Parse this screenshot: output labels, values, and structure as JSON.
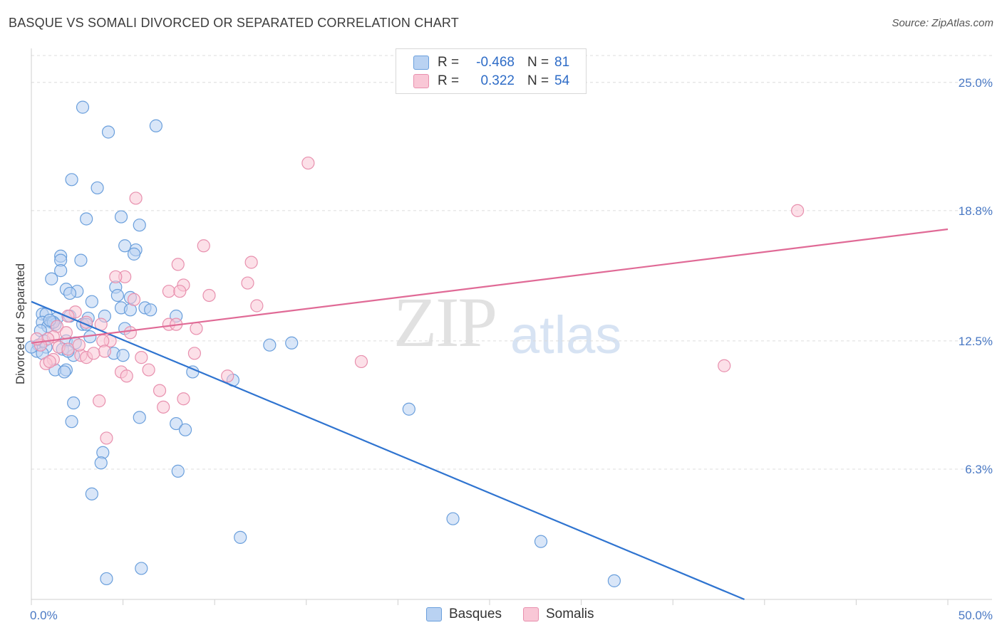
{
  "title": "BASQUE VS SOMALI DIVORCED OR SEPARATED CORRELATION CHART",
  "source": "Source: ZipAtlas.com",
  "watermark": {
    "zip": "ZIP",
    "atlas": "atlas"
  },
  "legend": {
    "r_label": "R =",
    "n_label": "N =",
    "basques": {
      "r": "-0.468",
      "n": "81"
    },
    "somalis": {
      "r": "0.322",
      "n": "54"
    }
  },
  "bottom_legend": {
    "basques": "Basques",
    "somalis": "Somalis"
  },
  "colors": {
    "basques_fill": "#b9d2f2",
    "basques_stroke": "#6a9fdc",
    "basques_line": "#2f74d0",
    "somalis_fill": "#f9c7d6",
    "somalis_stroke": "#e890ae",
    "somalis_line": "#e06a96",
    "grid": "#dcdcdc",
    "axis_label": "#4a79c4"
  },
  "chart_data": {
    "type": "scatter",
    "title": "BASQUE VS SOMALI DIVORCED OR SEPARATED CORRELATION CHART",
    "xlabel": "",
    "ylabel": "Divorced or Separated",
    "xlim": [
      0,
      50
    ],
    "ylim": [
      0,
      26.3
    ],
    "x_tick_labels": [
      "0.0%",
      "50.0%"
    ],
    "y_ticks": [
      6.3,
      12.5,
      18.8,
      25.0
    ],
    "y_tick_labels": [
      "6.3%",
      "12.5%",
      "18.8%",
      "25.0%"
    ],
    "grid": true,
    "series": [
      {
        "name": "Basques",
        "trend": {
          "x": [
            0,
            38.9
          ],
          "y": [
            14.4,
            0
          ]
        },
        "points": [
          [
            2.8,
            23.8
          ],
          [
            4.2,
            22.6
          ],
          [
            6.8,
            22.9
          ],
          [
            2.2,
            20.3
          ],
          [
            3.6,
            19.9
          ],
          [
            3.0,
            18.4
          ],
          [
            4.9,
            18.5
          ],
          [
            5.9,
            18.1
          ],
          [
            5.1,
            17.1
          ],
          [
            5.7,
            16.9
          ],
          [
            5.6,
            16.7
          ],
          [
            1.6,
            16.6
          ],
          [
            2.7,
            16.4
          ],
          [
            1.6,
            16.4
          ],
          [
            1.6,
            15.9
          ],
          [
            1.1,
            15.5
          ],
          [
            4.6,
            15.1
          ],
          [
            1.9,
            15.0
          ],
          [
            2.5,
            14.9
          ],
          [
            2.1,
            14.8
          ],
          [
            4.7,
            14.7
          ],
          [
            5.4,
            14.6
          ],
          [
            3.3,
            14.4
          ],
          [
            4.9,
            14.1
          ],
          [
            6.2,
            14.1
          ],
          [
            5.4,
            14.0
          ],
          [
            6.5,
            14.0
          ],
          [
            0.6,
            13.8
          ],
          [
            0.8,
            13.8
          ],
          [
            2.1,
            13.7
          ],
          [
            4.0,
            13.7
          ],
          [
            7.9,
            13.7
          ],
          [
            1.4,
            13.6
          ],
          [
            3.1,
            13.6
          ],
          [
            0.6,
            13.4
          ],
          [
            1.1,
            13.4
          ],
          [
            1.3,
            13.3
          ],
          [
            2.8,
            13.3
          ],
          [
            0.9,
            13.2
          ],
          [
            1.2,
            13.4
          ],
          [
            3.0,
            13.3
          ],
          [
            5.1,
            13.1
          ],
          [
            0.5,
            13.0
          ],
          [
            3.2,
            12.7
          ],
          [
            0.7,
            12.5
          ],
          [
            1.9,
            12.5
          ],
          [
            2.4,
            12.4
          ],
          [
            0.4,
            12.3
          ],
          [
            14.2,
            12.4
          ],
          [
            13.0,
            12.3
          ],
          [
            0.8,
            12.2
          ],
          [
            1.7,
            12.1
          ],
          [
            0.3,
            12.0
          ],
          [
            0.6,
            11.9
          ],
          [
            4.5,
            11.9
          ],
          [
            5.0,
            11.8
          ],
          [
            2.3,
            11.8
          ],
          [
            1.3,
            11.1
          ],
          [
            1.9,
            11.1
          ],
          [
            1.8,
            11.0
          ],
          [
            8.8,
            11.0
          ],
          [
            11.0,
            10.6
          ],
          [
            2.3,
            9.5
          ],
          [
            20.6,
            9.2
          ],
          [
            5.9,
            8.8
          ],
          [
            2.2,
            8.6
          ],
          [
            7.9,
            8.5
          ],
          [
            8.4,
            8.2
          ],
          [
            3.9,
            7.1
          ],
          [
            3.8,
            6.6
          ],
          [
            8.0,
            6.2
          ],
          [
            3.3,
            5.1
          ],
          [
            23.0,
            3.9
          ],
          [
            11.4,
            3.0
          ],
          [
            27.8,
            2.8
          ],
          [
            6.0,
            1.5
          ],
          [
            4.1,
            1.0
          ],
          [
            31.8,
            0.9
          ],
          [
            0.0,
            12.2
          ],
          [
            1.0,
            13.5
          ],
          [
            2.0,
            12.0
          ]
        ]
      },
      {
        "name": "Somalis",
        "trend": {
          "x": [
            0,
            50
          ],
          "y": [
            12.4,
            17.9
          ]
        },
        "points": [
          [
            15.1,
            21.1
          ],
          [
            5.7,
            19.4
          ],
          [
            41.8,
            18.8
          ],
          [
            9.4,
            17.1
          ],
          [
            12.0,
            16.3
          ],
          [
            8.0,
            16.2
          ],
          [
            5.1,
            15.6
          ],
          [
            4.6,
            15.6
          ],
          [
            11.8,
            15.3
          ],
          [
            8.3,
            15.2
          ],
          [
            7.5,
            14.9
          ],
          [
            8.1,
            14.9
          ],
          [
            9.7,
            14.7
          ],
          [
            5.6,
            14.5
          ],
          [
            12.3,
            14.2
          ],
          [
            2.4,
            13.9
          ],
          [
            2.0,
            13.7
          ],
          [
            3.0,
            13.4
          ],
          [
            3.8,
            13.3
          ],
          [
            7.5,
            13.3
          ],
          [
            7.9,
            13.3
          ],
          [
            1.4,
            13.2
          ],
          [
            9.0,
            13.1
          ],
          [
            5.4,
            12.9
          ],
          [
            1.2,
            12.7
          ],
          [
            0.9,
            12.6
          ],
          [
            4.3,
            12.5
          ],
          [
            3.9,
            12.5
          ],
          [
            0.5,
            12.3
          ],
          [
            1.5,
            12.2
          ],
          [
            2.0,
            12.1
          ],
          [
            4.0,
            12.0
          ],
          [
            8.9,
            11.9
          ],
          [
            2.7,
            11.8
          ],
          [
            3.0,
            11.7
          ],
          [
            6.0,
            11.7
          ],
          [
            1.2,
            11.6
          ],
          [
            0.8,
            11.4
          ],
          [
            1.0,
            11.5
          ],
          [
            18.0,
            11.5
          ],
          [
            37.8,
            11.3
          ],
          [
            6.4,
            11.1
          ],
          [
            4.9,
            11.0
          ],
          [
            5.2,
            10.8
          ],
          [
            10.7,
            10.8
          ],
          [
            7.0,
            10.1
          ],
          [
            3.7,
            9.6
          ],
          [
            8.3,
            9.7
          ],
          [
            7.2,
            9.3
          ],
          [
            4.1,
            7.8
          ],
          [
            1.9,
            12.9
          ],
          [
            2.6,
            12.3
          ],
          [
            0.3,
            12.6
          ],
          [
            3.4,
            11.9
          ]
        ]
      }
    ]
  }
}
